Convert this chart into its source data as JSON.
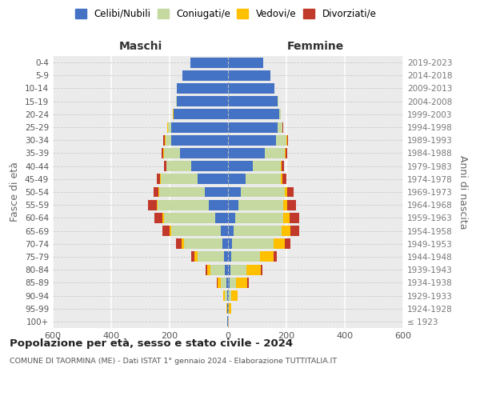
{
  "age_groups": [
    "100+",
    "95-99",
    "90-94",
    "85-89",
    "80-84",
    "75-79",
    "70-74",
    "65-69",
    "60-64",
    "55-59",
    "50-54",
    "45-49",
    "40-44",
    "35-39",
    "30-34",
    "25-29",
    "20-24",
    "15-19",
    "10-14",
    "5-9",
    "0-4"
  ],
  "birth_years": [
    "≤ 1923",
    "1924-1928",
    "1929-1933",
    "1934-1938",
    "1939-1943",
    "1944-1948",
    "1949-1953",
    "1954-1958",
    "1959-1963",
    "1964-1968",
    "1969-1973",
    "1974-1978",
    "1979-1983",
    "1984-1988",
    "1989-1993",
    "1994-1998",
    "1999-2003",
    "2004-2008",
    "2009-2013",
    "2014-2018",
    "2019-2023"
  ],
  "colors": {
    "celibi": "#4472c4",
    "coniugati": "#c5d9a0",
    "vedovi": "#ffc000",
    "divorziati": "#c0392b"
  },
  "maschi": {
    "celibi": [
      2,
      2,
      3,
      5,
      10,
      15,
      20,
      25,
      45,
      65,
      80,
      105,
      125,
      165,
      195,
      195,
      185,
      175,
      175,
      155,
      130
    ],
    "coniugati": [
      0,
      2,
      8,
      20,
      50,
      90,
      130,
      170,
      175,
      175,
      155,
      125,
      85,
      55,
      20,
      10,
      2,
      2,
      0,
      0,
      0
    ],
    "vedovi": [
      0,
      1,
      5,
      10,
      12,
      10,
      10,
      5,
      5,
      5,
      3,
      2,
      2,
      2,
      2,
      2,
      2,
      2,
      0,
      0,
      0
    ],
    "divorziati": [
      0,
      0,
      0,
      2,
      5,
      10,
      18,
      25,
      28,
      30,
      18,
      12,
      8,
      5,
      5,
      2,
      0,
      0,
      0,
      0,
      0
    ]
  },
  "femmine": {
    "celibi": [
      1,
      2,
      3,
      5,
      8,
      10,
      15,
      18,
      25,
      35,
      45,
      60,
      85,
      125,
      165,
      170,
      175,
      170,
      160,
      145,
      120
    ],
    "coniugati": [
      0,
      2,
      8,
      22,
      55,
      100,
      140,
      165,
      165,
      155,
      150,
      120,
      95,
      70,
      35,
      15,
      5,
      2,
      0,
      0,
      0
    ],
    "vedovi": [
      2,
      8,
      22,
      40,
      48,
      45,
      40,
      30,
      20,
      12,
      8,
      5,
      4,
      3,
      2,
      2,
      2,
      0,
      0,
      0,
      0
    ],
    "divorziati": [
      0,
      0,
      0,
      3,
      8,
      12,
      18,
      30,
      35,
      32,
      22,
      15,
      8,
      5,
      3,
      2,
      0,
      0,
      0,
      0,
      0
    ]
  },
  "title": "Popolazione per età, sesso e stato civile - 2024",
  "subtitle": "COMUNE DI TAORMINA (ME) - Dati ISTAT 1° gennaio 2024 - Elaborazione TUTTITALIA.IT",
  "xlabel_left": "Maschi",
  "xlabel_right": "Femmine",
  "ylabel_left": "Fasce di età",
  "ylabel_right": "Anni di nascita",
  "xlim": 600,
  "legend_labels": [
    "Celibi/Nubili",
    "Coniugati/e",
    "Vedovi/e",
    "Divorziati/e"
  ]
}
